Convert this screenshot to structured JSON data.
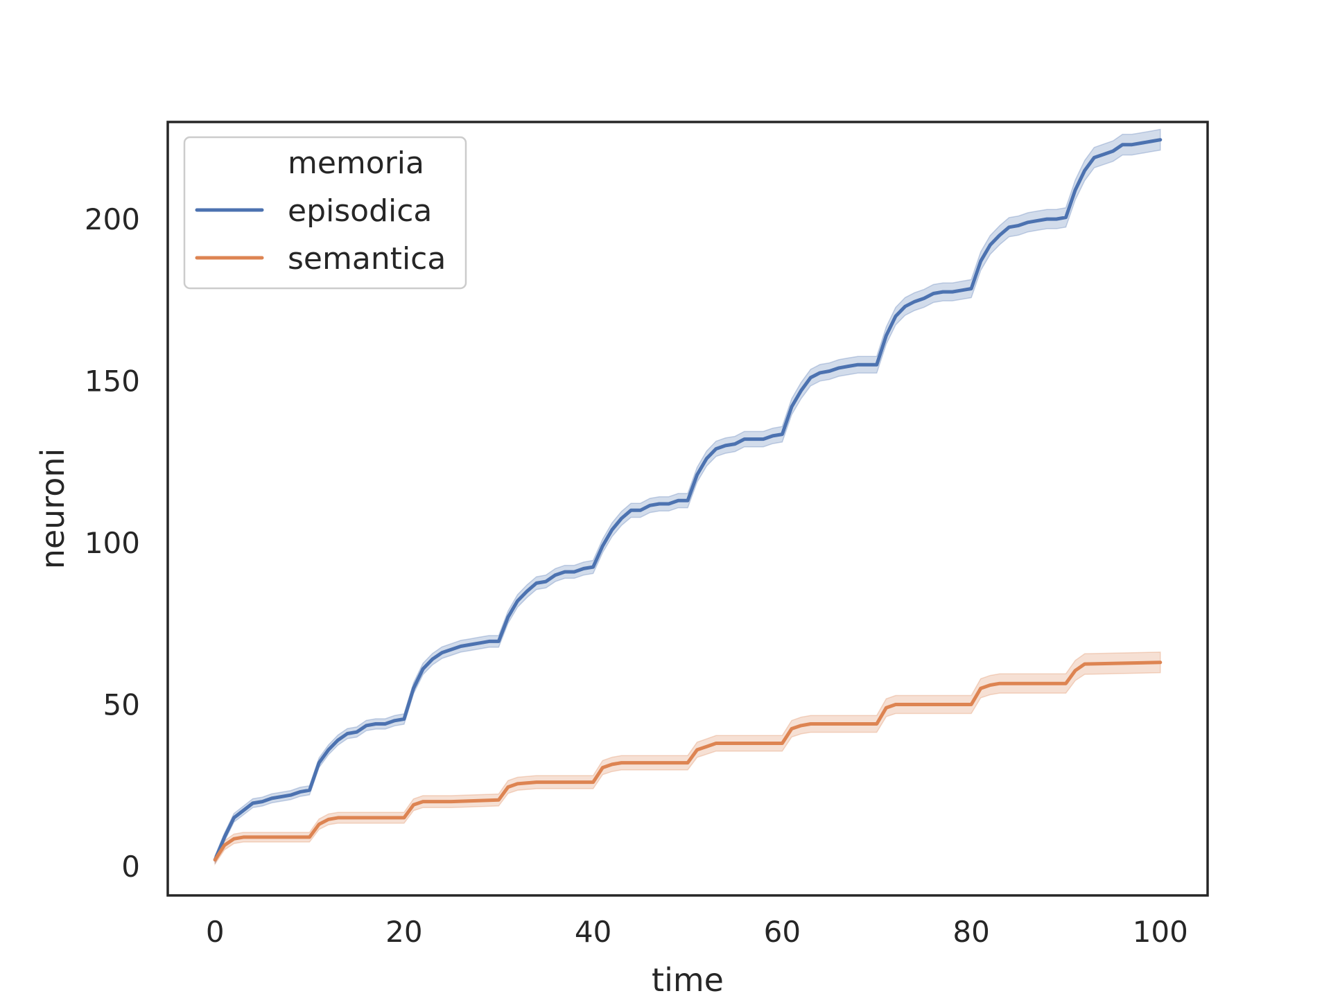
{
  "chart_data": {
    "type": "line",
    "title": "",
    "xlabel": "time",
    "ylabel": "neuroni",
    "xlim": [
      -5,
      105
    ],
    "ylim": [
      -9,
      230
    ],
    "xticks": [
      0,
      20,
      40,
      60,
      80,
      100
    ],
    "yticks": [
      0,
      50,
      100,
      150,
      200
    ],
    "grid": false,
    "legend": {
      "title": "memoria",
      "placement": "top-left"
    },
    "band": "confidence interval",
    "series": [
      {
        "name": "episodica",
        "color": "#4c72b0",
        "points": [
          [
            0,
            2
          ],
          [
            1,
            9
          ],
          [
            2,
            15
          ],
          [
            4,
            19.5
          ],
          [
            5,
            20
          ],
          [
            6,
            21
          ],
          [
            8,
            22
          ],
          [
            9,
            23
          ],
          [
            10,
            23.5
          ],
          [
            11,
            32
          ],
          [
            12,
            36
          ],
          [
            13,
            39
          ],
          [
            14,
            41
          ],
          [
            15,
            41.5
          ],
          [
            16,
            43.5
          ],
          [
            17,
            44
          ],
          [
            18,
            44
          ],
          [
            19,
            45
          ],
          [
            20,
            45.5
          ],
          [
            21,
            55
          ],
          [
            22,
            61
          ],
          [
            23,
            64
          ],
          [
            24,
            66
          ],
          [
            25,
            67
          ],
          [
            26,
            68
          ],
          [
            27,
            68.5
          ],
          [
            28,
            69
          ],
          [
            29,
            69.5
          ],
          [
            30,
            69.5
          ],
          [
            31,
            77
          ],
          [
            32,
            82
          ],
          [
            33,
            85
          ],
          [
            34,
            87.5
          ],
          [
            35,
            88
          ],
          [
            36,
            90
          ],
          [
            37,
            91
          ],
          [
            38,
            91
          ],
          [
            39,
            92
          ],
          [
            40,
            92.5
          ],
          [
            41,
            99
          ],
          [
            42,
            104
          ],
          [
            43,
            107.5
          ],
          [
            44,
            110
          ],
          [
            45,
            110
          ],
          [
            46,
            111.5
          ],
          [
            47,
            112
          ],
          [
            48,
            112
          ],
          [
            49,
            113
          ],
          [
            50,
            113
          ],
          [
            51,
            121
          ],
          [
            52,
            126
          ],
          [
            53,
            129
          ],
          [
            54,
            130
          ],
          [
            55,
            130.5
          ],
          [
            56,
            132
          ],
          [
            57,
            132
          ],
          [
            58,
            132
          ],
          [
            59,
            133
          ],
          [
            60,
            133.5
          ],
          [
            61,
            142
          ],
          [
            62,
            147
          ],
          [
            63,
            151
          ],
          [
            64,
            152.5
          ],
          [
            65,
            153
          ],
          [
            66,
            154
          ],
          [
            67,
            154.5
          ],
          [
            68,
            155
          ],
          [
            69,
            155
          ],
          [
            70,
            155
          ],
          [
            71,
            164
          ],
          [
            72,
            170
          ],
          [
            73,
            173
          ],
          [
            74,
            174.5
          ],
          [
            75,
            175.5
          ],
          [
            76,
            177
          ],
          [
            77,
            177.5
          ],
          [
            78,
            177.5
          ],
          [
            79,
            178
          ],
          [
            80,
            178.5
          ],
          [
            81,
            187
          ],
          [
            82,
            192
          ],
          [
            83,
            195
          ],
          [
            84,
            197.5
          ],
          [
            85,
            198
          ],
          [
            86,
            199
          ],
          [
            87,
            199.5
          ],
          [
            88,
            200
          ],
          [
            89,
            200
          ],
          [
            90,
            200.5
          ],
          [
            91,
            209
          ],
          [
            92,
            215
          ],
          [
            93,
            219
          ],
          [
            94,
            220
          ],
          [
            95,
            221
          ],
          [
            96,
            223
          ],
          [
            97,
            223
          ],
          [
            98,
            223.5
          ],
          [
            99,
            224
          ],
          [
            100,
            224.5
          ]
        ]
      },
      {
        "name": "semantica",
        "color": "#dd8452",
        "points": [
          [
            0,
            2
          ],
          [
            1,
            6.5
          ],
          [
            2,
            8.5
          ],
          [
            3,
            9
          ],
          [
            10,
            9
          ],
          [
            11,
            13
          ],
          [
            12,
            14.5
          ],
          [
            13,
            15
          ],
          [
            20,
            15
          ],
          [
            21,
            19
          ],
          [
            22,
            20
          ],
          [
            25,
            20
          ],
          [
            30,
            20.5
          ],
          [
            31,
            24.5
          ],
          [
            32,
            25.5
          ],
          [
            34,
            26
          ],
          [
            40,
            26
          ],
          [
            41,
            30.5
          ],
          [
            42,
            31.5
          ],
          [
            43,
            32
          ],
          [
            50,
            32
          ],
          [
            51,
            36
          ],
          [
            52,
            37
          ],
          [
            53,
            38
          ],
          [
            60,
            38
          ],
          [
            61,
            42.5
          ],
          [
            62,
            43.5
          ],
          [
            63,
            44
          ],
          [
            70,
            44
          ],
          [
            71,
            49
          ],
          [
            72,
            50
          ],
          [
            80,
            50
          ],
          [
            81,
            55
          ],
          [
            82,
            56
          ],
          [
            83,
            56.5
          ],
          [
            90,
            56.5
          ],
          [
            91,
            60.5
          ],
          [
            92,
            62.5
          ],
          [
            100,
            63
          ]
        ]
      }
    ]
  }
}
